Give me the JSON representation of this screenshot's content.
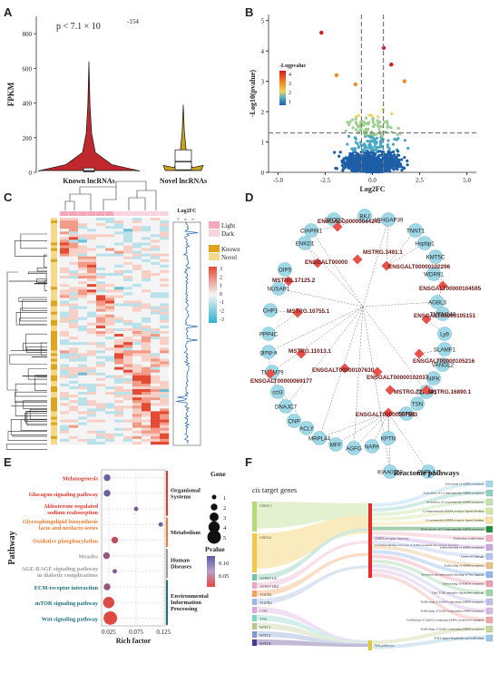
{
  "panels": [
    "A",
    "B",
    "C",
    "D",
    "E",
    "F"
  ],
  "chart_data": [
    {
      "type": "violin",
      "panel": "A",
      "ylabel": "FPKM",
      "yticks": [
        0,
        200,
        400,
        600,
        800
      ],
      "ylim": [
        0,
        900
      ],
      "categories": [
        "Known lncRNAs",
        "Novel lncRNAs"
      ],
      "colors": [
        "#c0282d",
        "#c9a224"
      ],
      "max_values": [
        640,
        390
      ],
      "box_q1": [
        3,
        15
      ],
      "box_median": [
        9,
        62
      ],
      "box_q3": [
        25,
        130
      ],
      "annotation_prefix": "p < 7.1 × 10",
      "annotation_exponent": "-154"
    },
    {
      "type": "scatter",
      "panel": "B",
      "xlabel": "Log2FC",
      "ylabel": "-Log10(pvalue)",
      "xticks": [
        "-5.0",
        "-2.5",
        "0.0",
        "2.5",
        "5.0"
      ],
      "xlim": [
        -5.5,
        5.5
      ],
      "yticks": [
        0,
        1,
        2,
        3,
        4,
        5
      ],
      "ylim": [
        0,
        5.2
      ],
      "threshold_x": [
        -0.58,
        0.58
      ],
      "threshold_y": 1.3,
      "legend_title": "-Logpvalue",
      "legend_ticks": [
        "4",
        "3",
        "2",
        "1"
      ],
      "legend_position": "top-left",
      "highlight_points": [
        {
          "x": -2.7,
          "y": 4.6
        },
        {
          "x": 0.6,
          "y": 4.1
        },
        {
          "x": 1.0,
          "y": 3.55
        },
        {
          "x": -1.9,
          "y": 3.2
        },
        {
          "x": 1.7,
          "y": 3.0
        },
        {
          "x": -0.9,
          "y": 2.9
        }
      ]
    },
    {
      "type": "heatmap",
      "panel": "C",
      "legend_groups": [
        {
          "items": [
            "Light",
            "Dark"
          ],
          "colors": [
            "#f3a7b9",
            "#f8d3dc"
          ]
        },
        {
          "items": [
            "Known",
            "Novel"
          ],
          "colors": [
            "#e0a31d",
            "#f6d88a"
          ]
        }
      ],
      "color_scale": [
        "3",
        "2",
        "1",
        "0",
        "-1",
        "-2",
        "-3"
      ],
      "track_title": "Log2FC",
      "track_ticks": [
        "-3",
        "0",
        "3"
      ]
    },
    {
      "type": "network",
      "panel": "D",
      "lncRNAs": [
        "ENSGALG00000044241",
        "MSTRG.3491.1",
        "ENSGALT00000102296",
        "ENSGALT00000",
        "MSTRG.17125.2",
        "ENSGALT00000104595",
        "MSTRG.10755.1",
        "ENSGALT00000105151",
        "MSTRG.11013.1",
        "ENSGALT00000105216",
        "ENSGALT00000107630",
        "ENSGALT00000102037",
        "ENSGALT00000069177",
        "MSTRG.7263.1",
        "MSTRG.16890.1",
        "ENSGALT00000107583"
      ],
      "mRNAs": [
        "CIAPIN1",
        "GFOD2",
        "BKJ",
        "ARHGAP39",
        "TNNT1",
        "Hspbp1",
        "ENKD1",
        "OIP5",
        "KMT5C",
        "NUSAP1",
        "WDR91",
        "CHP1",
        "AGBL3",
        "TMEM140",
        "PPP4C",
        "gimp-a",
        "Ly9",
        "SLAMF1",
        "TMEM79",
        "VANGL2",
        "cct3",
        "DNAJC7",
        "NIFK",
        "CNP",
        "CLASP1",
        "ACLY",
        "TSN",
        "MRPL44",
        "TGFB1",
        "MFF",
        "AGFG",
        "NAPA",
        "KPTN",
        "KIAA0100",
        "PNPLA2"
      ]
    },
    {
      "type": "scatter",
      "panel": "E",
      "xlabel": "Rich factor",
      "ylabel": "Pathway",
      "xticks": [
        "0.025",
        "0.075",
        "0.125"
      ],
      "xlim": [
        0.012,
        0.128
      ],
      "categories": [
        "Melanogenesis",
        "Glucagon signaling pathway",
        "Aldosterone-regulated sodium reabsorption",
        "Glycosphingolipid biosynthesis lacto and neolacto series",
        "Oxidative phosphorylation",
        "Measles",
        "AGE-RAGE signaling pathway in diabetic complications",
        "ECM-receptor interaction",
        "mTOR signaling pathway",
        "Wnt signaling pathway"
      ],
      "label_colors": [
        "#e23a2e",
        "#e23a2e",
        "#e23a2e",
        "#ef7a2f",
        "#ef7a2f",
        "#9a9a9a",
        "#9a9a9a",
        "#1b6f7a",
        "#1b6f7a",
        "#1b6f7a"
      ],
      "rich_factor": [
        0.022,
        0.022,
        0.075,
        0.12,
        0.036,
        0.021,
        0.036,
        0.022,
        0.025,
        0.028
      ],
      "gene_number": [
        2,
        2,
        1,
        1,
        2,
        2,
        1,
        2,
        4,
        5
      ],
      "pvalue": [
        0.11,
        0.11,
        0.1,
        0.11,
        0.05,
        0.08,
        0.1,
        0.08,
        0.03,
        0.025
      ],
      "groups": [
        {
          "label": "Organismal Systems",
          "color": "#e23a2e",
          "rows": [
            0,
            2
          ]
        },
        {
          "label": "Metabolism",
          "color": "#ef7a2f",
          "rows": [
            3,
            4
          ]
        },
        {
          "label": "Human Diseases",
          "color": "#9a9a9a",
          "rows": [
            5,
            6
          ]
        },
        {
          "label": "Environmental Information Processing",
          "color": "#1b6f7a",
          "rows": [
            7,
            9
          ]
        }
      ],
      "size_legend_title": "Gene number",
      "size_legend_values": [
        "1",
        "2",
        "3",
        "4",
        "5"
      ],
      "color_legend_title": "Pvalue",
      "color_legend_ticks": [
        "0.10",
        "0.05"
      ]
    },
    {
      "type": "sankey",
      "panel": "F",
      "left_title_italic": "cis",
      "left_title": " target genes",
      "right_title": "Reactome pathways",
      "left_nodes": [
        "GRIA1",
        "GRIA2",
        "ATP6V1A",
        "ATP6V1B2",
        "TGFB1",
        "TGFB2",
        "CNP",
        "TNS",
        "WNT1",
        "WNT2",
        "WNT4"
      ],
      "left_colors": [
        "#b3d97d",
        "#f1c84b",
        "#7ac1a8",
        "#e9a7c6",
        "#f6a05d",
        "#9fb6dd",
        "#d7a8e0",
        "#82d2c6",
        "#b9c98b",
        "#7f9ad0",
        "#4f3a8c"
      ],
      "middle_nodes": [
        "AMPA receptor function",
        "Glutamate binding, activation of AMPA receptors and synaptic plasticity",
        "Wnt pathways"
      ],
      "right_nodes": [
        "Activation of AMPA receptors",
        "Activation of Ca-impermeable AMPA receptors",
        "Activation of Ca-permeable AMPA receptors",
        "Ca-impermeable AMPA receptor ligand binding",
        "Ca-permeable AMPA receptor ligand binding",
        "Endocytosis of Ca-impermeable AMPA receptors",
        "Endosome acidification",
        "Internalization of AMPA receptors",
        "Lysine 63 linkage",
        "Trafficking of AMPA receptors",
        "Secretion and subsequent binding of Wnt ligands",
        "Unblocking of NMDA receptors",
        "The ITGB1 phospho-dependent pathway",
        "Trafficking of GluR2-containing AMPA receptors",
        "Trafficking of GluR1-containing AMPA receptors",
        "Trafficking of GluR2-containing AMPA receptors to synapse",
        "Trafficking of GluR1-containing AMPA receptors",
        "WNT ligand biogenesis and trafficking"
      ],
      "right_colors": [
        "#a8d8f0",
        "#8fd0c4",
        "#bfe3a8",
        "#d9e8a0",
        "#f7e39a",
        "#1e8c3a",
        "#f4b3c2",
        "#c9a6e3",
        "#b6c2f0",
        "#e7c08a",
        "#8fb6e9",
        "#ee9ab3",
        "#9cd6a7",
        "#bfbfe6",
        "#dcb8e8",
        "#f0a7a7",
        "#c7d99b",
        "#9ec8e8"
      ]
    }
  ]
}
